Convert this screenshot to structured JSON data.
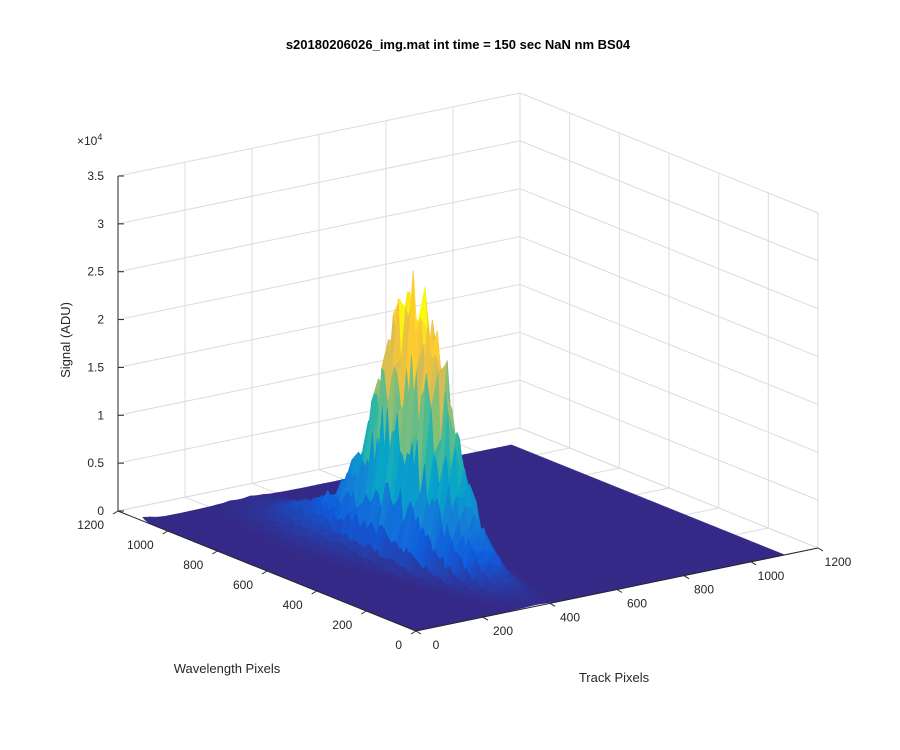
{
  "chart_data": {
    "type": "surface",
    "title": "s20180206026_img.mat int time = 150 sec  NaN nm BS04",
    "xlabel": "Track Pixels",
    "ylabel": "Wavelength Pixels",
    "zlabel": "Signal (ADU)",
    "z_exponent_label": "×10",
    "z_exponent_power": "4",
    "xlim": [
      0,
      1200
    ],
    "ylim": [
      0,
      1200
    ],
    "zlim": [
      0,
      35000
    ],
    "x_ticks": [
      "0",
      "200",
      "400",
      "600",
      "800",
      "1000",
      "1200"
    ],
    "y_ticks": [
      "0",
      "200",
      "400",
      "600",
      "800",
      "1000",
      "1200"
    ],
    "z_ticks": [
      "0",
      "0.5",
      "1",
      "1.5",
      "2",
      "2.5",
      "3",
      "3.5"
    ],
    "grid": true,
    "colormap": [
      "#352a87",
      "#0f5cdd",
      "#1481d6",
      "#06a4ca",
      "#2eb7a4",
      "#87bf77",
      "#d1bb59",
      "#fec832",
      "#f9fb0e"
    ],
    "floor_color": "#352a87",
    "peak": {
      "track_pixel": 350,
      "wavelength_pixel": 480,
      "signal": 25500
    },
    "secondary_bump": {
      "track_pixel": 0,
      "wavelength_pixel": 1150,
      "signal": 1500
    },
    "surface_extent": {
      "track_pixels": [
        0,
        1100
      ],
      "wavelength_pixels": [
        0,
        1100
      ]
    }
  }
}
